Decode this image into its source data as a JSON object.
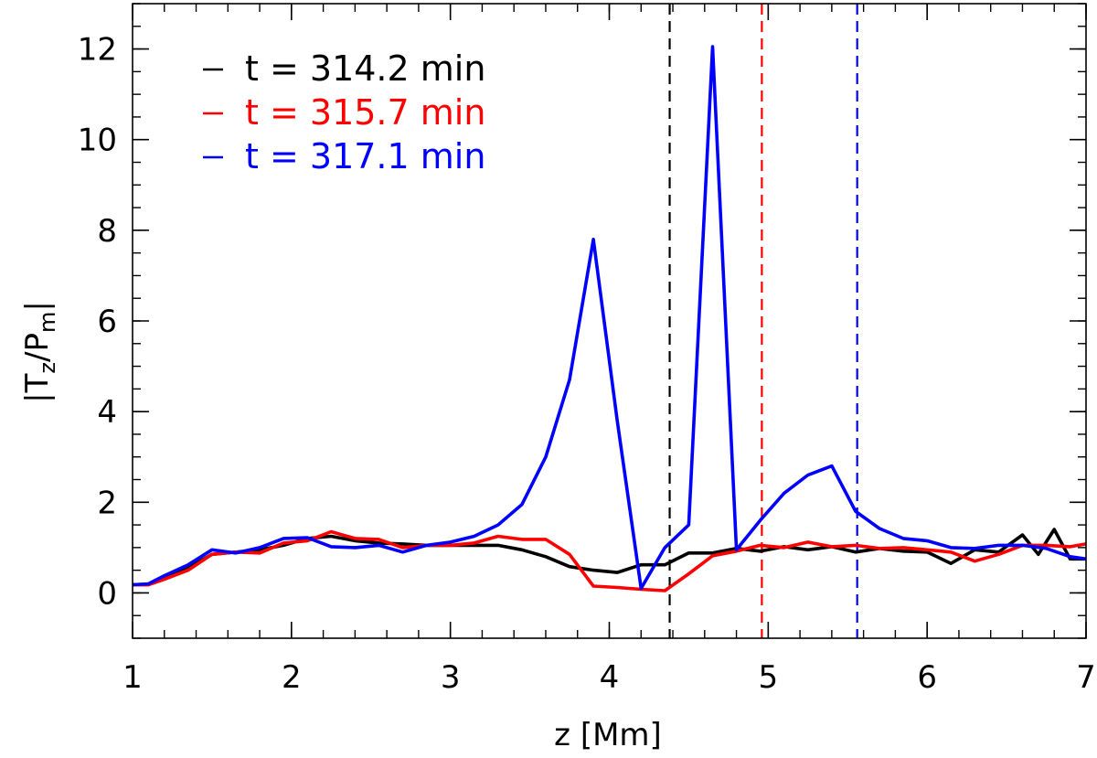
{
  "chart_data": {
    "type": "line",
    "title": "",
    "xlabel": "z [Mm]",
    "ylabel_parts": {
      "bar_left": "|",
      "t": "T",
      "t_sub": "z",
      "slash": "/",
      "p": "P",
      "p_sub": "m",
      "bar_right": "|"
    },
    "xlim": [
      1,
      7
    ],
    "ylim": [
      -1,
      13
    ],
    "xticks": [
      1,
      2,
      3,
      4,
      5,
      6,
      7
    ],
    "yticks": [
      0,
      2,
      4,
      6,
      8,
      10,
      12
    ],
    "x_minor_step": 0.2,
    "y_minor_step": 0.5,
    "legend_position": "top-left",
    "series": [
      {
        "name": "t = 314.2 min",
        "color": "#000000",
        "marker_x": 4.38,
        "x": [
          1.0,
          1.1,
          1.2,
          1.35,
          1.5,
          1.65,
          1.8,
          1.95,
          2.1,
          2.25,
          2.4,
          2.55,
          2.7,
          2.85,
          3.0,
          3.15,
          3.3,
          3.45,
          3.6,
          3.75,
          3.9,
          4.05,
          4.2,
          4.35,
          4.5,
          4.65,
          4.8,
          4.95,
          5.1,
          5.25,
          5.4,
          5.55,
          5.7,
          5.85,
          6.0,
          6.15,
          6.3,
          6.45,
          6.6,
          6.7,
          6.8,
          6.9,
          7.0
        ],
        "y": [
          0.18,
          0.18,
          0.35,
          0.55,
          0.85,
          0.9,
          0.95,
          1.05,
          1.2,
          1.25,
          1.15,
          1.1,
          1.08,
          1.05,
          1.05,
          1.05,
          1.05,
          0.95,
          0.8,
          0.58,
          0.5,
          0.45,
          0.62,
          0.62,
          0.88,
          0.88,
          0.98,
          0.92,
          1.02,
          0.95,
          1.02,
          0.9,
          0.98,
          0.92,
          0.9,
          0.65,
          0.95,
          0.9,
          1.28,
          0.85,
          1.4,
          0.75,
          0.75
        ]
      },
      {
        "name": "t = 315.7 min",
        "color": "#ff0000",
        "marker_x": 4.96,
        "x": [
          1.0,
          1.1,
          1.2,
          1.35,
          1.5,
          1.65,
          1.8,
          1.95,
          2.1,
          2.25,
          2.4,
          2.55,
          2.7,
          2.85,
          3.0,
          3.15,
          3.3,
          3.45,
          3.6,
          3.75,
          3.9,
          4.05,
          4.2,
          4.35,
          4.5,
          4.65,
          4.8,
          4.95,
          5.1,
          5.25,
          5.4,
          5.55,
          5.7,
          5.85,
          6.0,
          6.15,
          6.3,
          6.45,
          6.6,
          6.75,
          6.9,
          7.0
        ],
        "y": [
          0.18,
          0.18,
          0.3,
          0.5,
          0.85,
          0.9,
          0.88,
          1.1,
          1.15,
          1.35,
          1.2,
          1.18,
          1.0,
          1.05,
          1.05,
          1.1,
          1.25,
          1.18,
          1.18,
          0.85,
          0.15,
          0.12,
          0.08,
          0.05,
          0.42,
          0.82,
          0.92,
          1.05,
          1.0,
          1.12,
          1.02,
          1.05,
          0.98,
          1.0,
          0.95,
          0.9,
          0.7,
          0.85,
          1.05,
          1.05,
          1.02,
          1.08
        ]
      },
      {
        "name": "t = 317.1 min",
        "color": "#0000ff",
        "marker_x": 5.56,
        "x": [
          1.0,
          1.1,
          1.2,
          1.35,
          1.5,
          1.65,
          1.8,
          1.95,
          2.1,
          2.25,
          2.4,
          2.55,
          2.7,
          2.85,
          3.0,
          3.15,
          3.3,
          3.45,
          3.6,
          3.75,
          3.9,
          4.05,
          4.2,
          4.35,
          4.5,
          4.65,
          4.8,
          4.95,
          5.1,
          5.25,
          5.4,
          5.55,
          5.7,
          5.85,
          6.0,
          6.15,
          6.3,
          6.45,
          6.6,
          6.75,
          6.9,
          7.0
        ],
        "y": [
          0.18,
          0.2,
          0.38,
          0.62,
          0.95,
          0.88,
          1.0,
          1.2,
          1.22,
          1.02,
          1.0,
          1.05,
          0.9,
          1.05,
          1.12,
          1.25,
          1.5,
          1.95,
          3.0,
          4.7,
          7.8,
          3.8,
          0.1,
          1.0,
          1.5,
          12.05,
          0.95,
          1.6,
          2.2,
          2.6,
          2.8,
          1.8,
          1.42,
          1.2,
          1.15,
          1.0,
          0.98,
          1.05,
          1.05,
          0.98,
          0.8,
          0.75
        ]
      }
    ]
  }
}
